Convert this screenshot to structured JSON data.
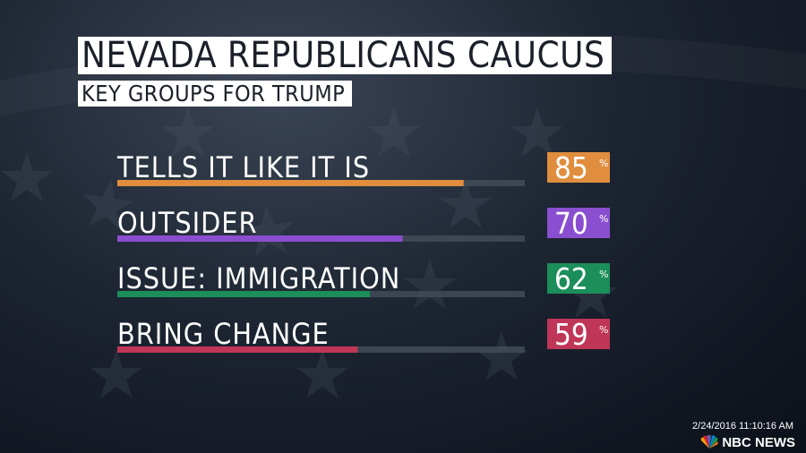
{
  "header": {
    "title": "NEVADA REPUBLICANS CAUCUS",
    "subtitle": "KEY GROUPS FOR TRUMP"
  },
  "chart_data": {
    "type": "bar",
    "orientation": "horizontal",
    "title": "NEVADA REPUBLICANS CAUCUS",
    "subtitle": "KEY GROUPS FOR TRUMP",
    "categories": [
      "TELLS IT LIKE IT IS",
      "OUTSIDER",
      "ISSUE: IMMIGRATION",
      "BRING CHANGE"
    ],
    "values": [
      85,
      70,
      62,
      59
    ],
    "value_labels": [
      "85",
      "70",
      "62",
      "59"
    ],
    "unit": "%",
    "xlim": [
      0,
      100
    ],
    "colors": [
      "#e08e3e",
      "#8a4fd0",
      "#1b8e5a",
      "#bf3658"
    ],
    "grid": false,
    "legend": "none"
  },
  "footer": {
    "timestamp": "2/24/2016 11:10:16 AM",
    "logo": "NBC NEWS",
    "logo_icon": "peacock-icon"
  }
}
